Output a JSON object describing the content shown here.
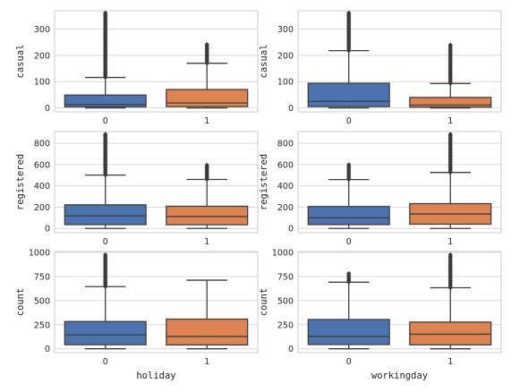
{
  "chart_data": [
    {
      "type": "box",
      "panel": "holiday-casual",
      "xlabel": "holiday",
      "xlabel_visible": false,
      "ylabel": "casual",
      "categories": [
        "0",
        "1"
      ],
      "ylim": [
        -15,
        370
      ],
      "yticks": [
        0,
        100,
        200,
        300
      ],
      "series": [
        {
          "category": "0",
          "color": "#4c72b0",
          "whisker_low": 0,
          "q1": 4,
          "median": 13,
          "q3": 49,
          "whisker_high": 116,
          "outliers_from": 116,
          "outliers_to": 362
        },
        {
          "category": "1",
          "color": "#dd8452",
          "whisker_low": 0,
          "q1": 5,
          "median": 19,
          "q3": 70,
          "whisker_high": 170,
          "outliers_from": 170,
          "outliers_to": 242
        }
      ]
    },
    {
      "type": "box",
      "panel": "workingday-casual",
      "xlabel": "workingday",
      "xlabel_visible": false,
      "ylabel": "casual",
      "categories": [
        "0",
        "1"
      ],
      "ylim": [
        -15,
        370
      ],
      "yticks": [
        0,
        100,
        200,
        300
      ],
      "series": [
        {
          "category": "0",
          "color": "#4c72b0",
          "whisker_low": 0,
          "q1": 5,
          "median": 25,
          "q3": 94,
          "whisker_high": 218,
          "outliers_from": 218,
          "outliers_to": 362
        },
        {
          "category": "1",
          "color": "#dd8452",
          "whisker_low": 0,
          "q1": 3,
          "median": 11,
          "q3": 40,
          "whisker_high": 93,
          "outliers_from": 93,
          "outliers_to": 240
        }
      ]
    },
    {
      "type": "box",
      "panel": "holiday-registered",
      "xlabel": "holiday",
      "xlabel_visible": false,
      "ylabel": "registered",
      "categories": [
        "0",
        "1"
      ],
      "ylim": [
        -40,
        910
      ],
      "yticks": [
        0,
        200,
        400,
        600,
        800
      ],
      "series": [
        {
          "category": "0",
          "color": "#4c72b0",
          "whisker_low": 0,
          "q1": 36,
          "median": 118,
          "q3": 222,
          "whisker_high": 501,
          "outliers_from": 501,
          "outliers_to": 886
        },
        {
          "category": "1",
          "color": "#dd8452",
          "whisker_low": 0,
          "q1": 35,
          "median": 112,
          "q3": 208,
          "whisker_high": 460,
          "outliers_from": 460,
          "outliers_to": 595
        }
      ]
    },
    {
      "type": "box",
      "panel": "workingday-registered",
      "xlabel": "workingday",
      "xlabel_visible": false,
      "ylabel": "registered",
      "categories": [
        "0",
        "1"
      ],
      "ylim": [
        -40,
        910
      ],
      "yticks": [
        0,
        200,
        400,
        600,
        800
      ],
      "series": [
        {
          "category": "0",
          "color": "#4c72b0",
          "whisker_low": 0,
          "q1": 36,
          "median": 100,
          "q3": 206,
          "whisker_high": 459,
          "outliers_from": 459,
          "outliers_to": 600
        },
        {
          "category": "1",
          "color": "#dd8452",
          "whisker_low": 0,
          "q1": 40,
          "median": 136,
          "q3": 233,
          "whisker_high": 526,
          "outliers_from": 526,
          "outliers_to": 886
        }
      ]
    },
    {
      "type": "box",
      "panel": "holiday-count",
      "xlabel": "holiday",
      "xlabel_visible": true,
      "ylabel": "count",
      "categories": [
        "0",
        "1"
      ],
      "ylim": [
        -40,
        1010
      ],
      "yticks": [
        0,
        250,
        500,
        750,
        1000
      ],
      "series": [
        {
          "category": "0",
          "color": "#4c72b0",
          "whisker_low": 0,
          "q1": 42,
          "median": 145,
          "q3": 283,
          "whisker_high": 645,
          "outliers_from": 645,
          "outliers_to": 977
        },
        {
          "category": "1",
          "color": "#dd8452",
          "whisker_low": 0,
          "q1": 40,
          "median": 128,
          "q3": 308,
          "whisker_high": 712,
          "outliers_from": null,
          "outliers_to": null
        }
      ]
    },
    {
      "type": "box",
      "panel": "workingday-count",
      "xlabel": "workingday",
      "xlabel_visible": true,
      "ylabel": "count",
      "categories": [
        "0",
        "1"
      ],
      "ylim": [
        -40,
        1010
      ],
      "yticks": [
        0,
        250,
        500,
        750,
        1000
      ],
      "series": [
        {
          "category": "0",
          "color": "#4c72b0",
          "whisker_low": 0,
          "q1": 44,
          "median": 128,
          "q3": 304,
          "whisker_high": 691,
          "outliers_from": 691,
          "outliers_to": 783
        },
        {
          "category": "1",
          "color": "#dd8452",
          "whisker_low": 0,
          "q1": 41,
          "median": 151,
          "q3": 277,
          "whisker_high": 634,
          "outliers_from": 634,
          "outliers_to": 977
        }
      ]
    }
  ]
}
